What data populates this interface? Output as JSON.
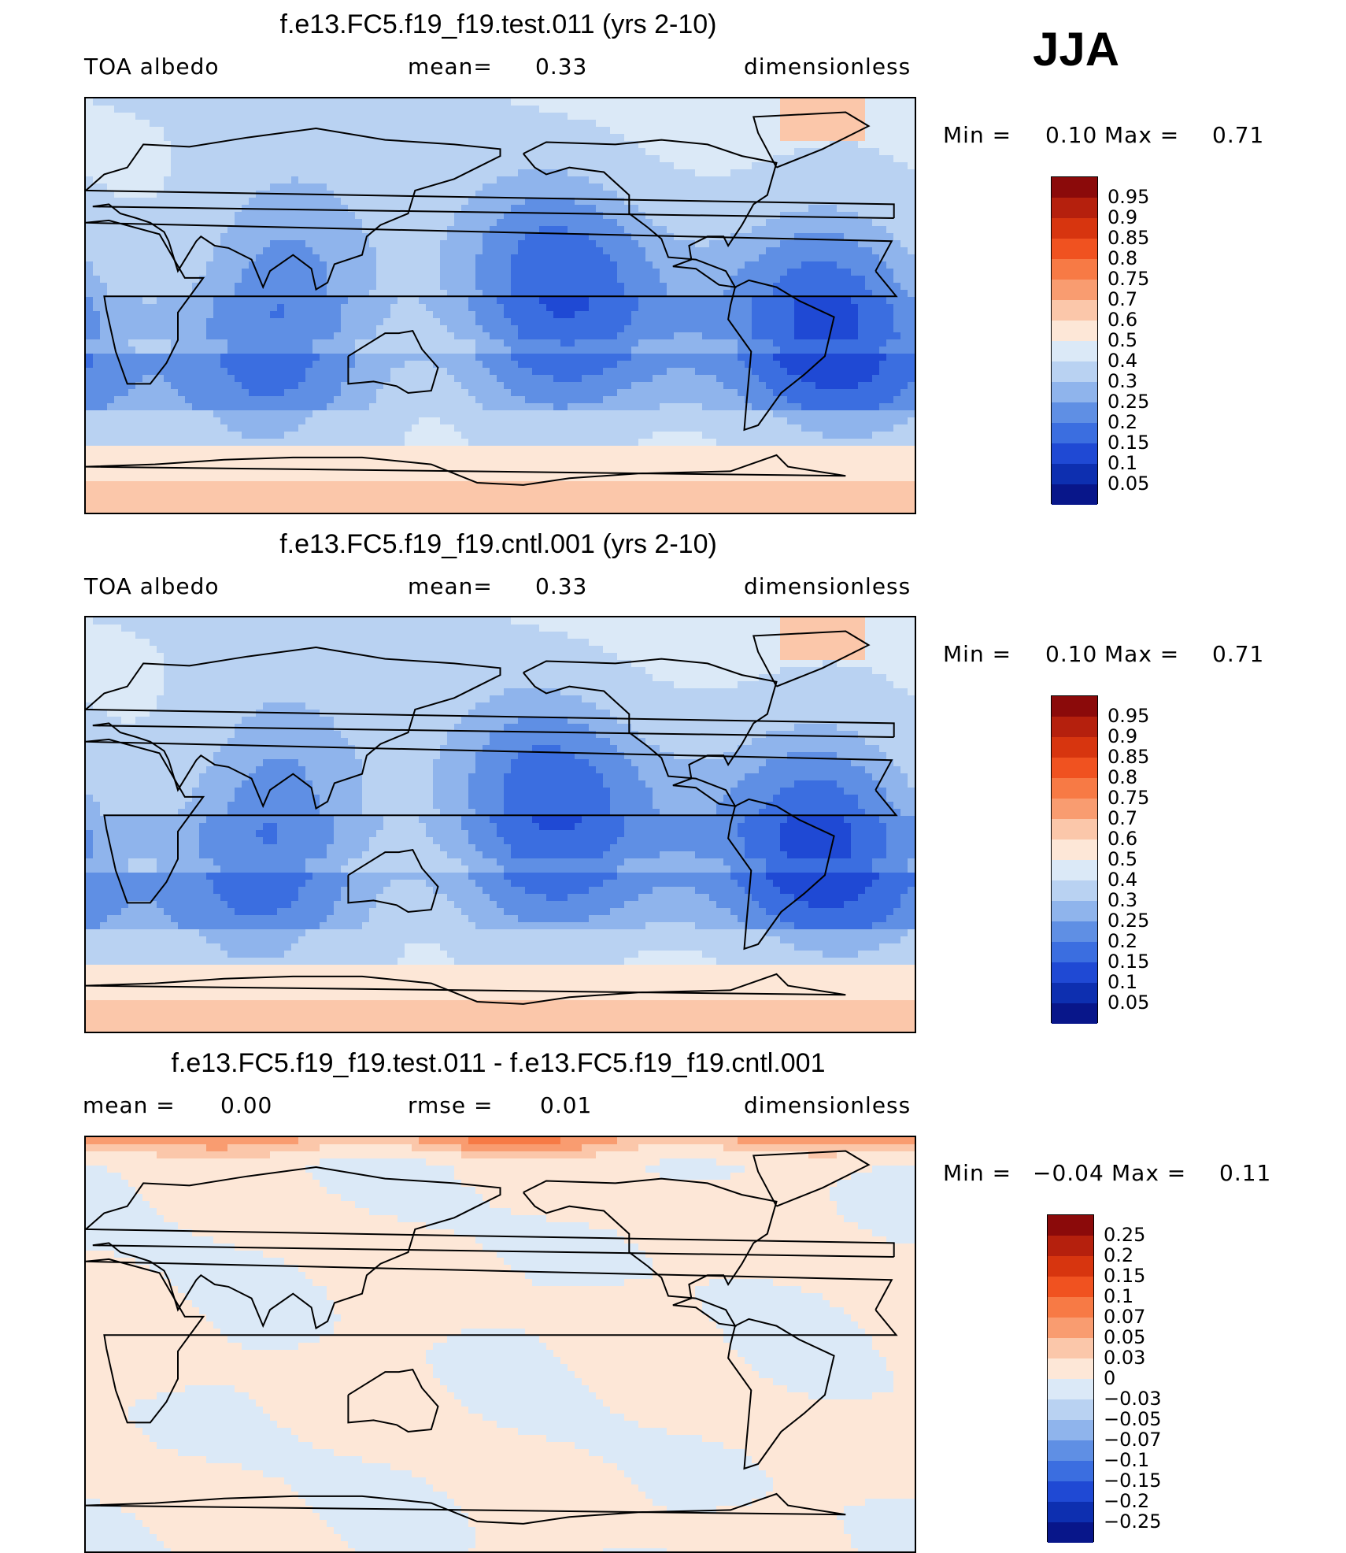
{
  "season": "JJA",
  "panels": [
    {
      "title": "f.e13.FC5.f19_f19.test.011 (yrs 2-10)",
      "left_label": "TOA  albedo",
      "mid_label": "mean=",
      "mid_value": "0.33",
      "right_label": "dimensionless",
      "min_label": "Min  =",
      "min_value": "0.10",
      "max_label": "Max  =",
      "max_value": "0.71",
      "type": "climatology"
    },
    {
      "title": "f.e13.FC5.f19_f19.cntl.001 (yrs 2-10)",
      "left_label": "TOA  albedo",
      "mid_label": "mean=",
      "mid_value": "0.33",
      "right_label": "dimensionless",
      "min_label": "Min  =",
      "min_value": "0.10",
      "max_label": "Max  =",
      "max_value": "0.71",
      "type": "climatology"
    },
    {
      "title": "f.e13.FC5.f19_f19.test.011 - f.e13.FC5.f19_f19.cntl.001",
      "left_label": "mean  =",
      "left_value": "0.00",
      "mid_label": "rmse  =",
      "mid_value": "0.01",
      "right_label": "dimensionless",
      "min_label": "Min  =",
      "min_value": "−0.04",
      "max_label": "Max  =",
      "max_value": "0.11",
      "type": "difference"
    }
  ],
  "colorbars": {
    "climatology": {
      "labels": [
        "0.95",
        "0.9",
        "0.85",
        "0.8",
        "0.75",
        "0.7",
        "0.6",
        "0.5",
        "0.4",
        "0.3",
        "0.25",
        "0.2",
        "0.15",
        "0.1",
        "0.05"
      ],
      "colors": [
        "#8b0a0a",
        "#b5200d",
        "#d7350f",
        "#f05220",
        "#f77a45",
        "#f99c70",
        "#fbc7aa",
        "#fde7d7",
        "#dbe9f7",
        "#b9d2f2",
        "#8fb4ec",
        "#5f8fe4",
        "#3b6ee0",
        "#1f49d4",
        "#0d2fb0",
        "#08168a"
      ]
    },
    "difference": {
      "labels": [
        "0.25",
        "0.2",
        "0.15",
        "0.1",
        "0.07",
        "0.05",
        "0.03",
        "0",
        "−0.03",
        "−0.05",
        "−0.07",
        "−0.1",
        "−0.15",
        "−0.2",
        "−0.25"
      ],
      "colors": [
        "#8b0a0a",
        "#b5200d",
        "#d7350f",
        "#f05220",
        "#f77a45",
        "#f99c70",
        "#fbc7aa",
        "#fde7d7",
        "#dbe9f7",
        "#b9d2f2",
        "#8fb4ec",
        "#5f8fe4",
        "#3b6ee0",
        "#1f49d4",
        "#0d2fb0",
        "#08168a"
      ]
    }
  }
}
